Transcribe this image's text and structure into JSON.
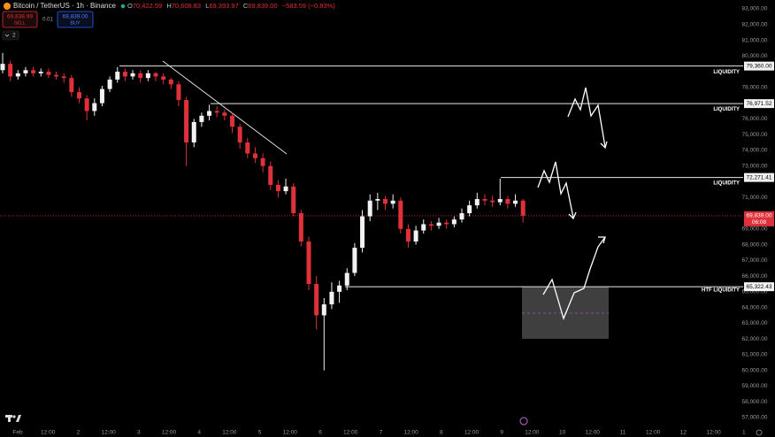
{
  "header": {
    "symbol": "Bitcoin / TetherUS · 1h · Binance",
    "o_key": "O",
    "o": "70,422.59",
    "h_key": "H",
    "h": "70,608.83",
    "l_key": "L",
    "l": "69,393.97",
    "c_key": "C",
    "c": "69,839.00",
    "change": "−583.59 (−0.83%)",
    "sell_price": "69,838.99",
    "sell": "SELL",
    "spread": "0.01",
    "buy_price": "69,839.00",
    "buy": "BUY",
    "indicators": "2"
  },
  "chart_data": {
    "type": "candlestick",
    "open": [
      79100,
      79500,
      78700,
      78900,
      79100,
      78900,
      79000,
      78800,
      78700,
      78600,
      77700,
      77300,
      76500,
      77000,
      77900,
      78500,
      79000,
      78700,
      78900,
      78600,
      78900,
      78700,
      78500,
      78200,
      77200,
      74500,
      75800,
      76200,
      76500,
      76400,
      76200,
      75500,
      74500,
      73800,
      73500,
      73000,
      71800,
      71400,
      71700,
      70000,
      68200,
      65500,
      63500,
      64200,
      65000,
      65400,
      66200,
      67800,
      69800,
      70800,
      70900,
      70600,
      70800,
      69000,
      68200,
      68900,
      69300,
      69200,
      69400,
      69300,
      69600,
      70000,
      70500,
      70900,
      70800,
      70700,
      70900,
      70600,
      70800
    ],
    "high": [
      80200,
      79700,
      79100,
      79300,
      79300,
      79200,
      79200,
      79000,
      78900,
      78800,
      78000,
      77500,
      77300,
      78100,
      78700,
      79300,
      79200,
      79100,
      79100,
      79100,
      79000,
      78900,
      78600,
      78400,
      77400,
      76000,
      76400,
      76900,
      76800,
      76600,
      76400,
      75700,
      74800,
      74200,
      73800,
      73300,
      72100,
      72200,
      71900,
      70200,
      68500,
      66000,
      64600,
      65600,
      65700,
      66500,
      68100,
      70200,
      71200,
      71300,
      71100,
      71200,
      71000,
      69300,
      69200,
      69600,
      69500,
      69700,
      69600,
      69800,
      70300,
      70800,
      71300,
      71200,
      71100,
      72200,
      71100,
      71200,
      70900
    ],
    "low": [
      78900,
      78400,
      78500,
      78700,
      78700,
      78700,
      78600,
      78500,
      78300,
      77400,
      77000,
      75900,
      76200,
      76800,
      77700,
      78300,
      78400,
      78500,
      78300,
      78400,
      78400,
      78200,
      77900,
      76800,
      73000,
      74200,
      75500,
      75900,
      76100,
      75900,
      75100,
      74100,
      73500,
      73200,
      72600,
      71500,
      71000,
      71200,
      69800,
      67900,
      65100,
      62600,
      60000,
      63900,
      64300,
      65100,
      66000,
      67500,
      69500,
      70200,
      70200,
      70300,
      68700,
      67800,
      68000,
      68700,
      68900,
      69000,
      69000,
      69100,
      69400,
      69800,
      70300,
      70500,
      70400,
      70500,
      70300,
      70400,
      69400
    ],
    "close": [
      79500,
      78700,
      78900,
      79100,
      78900,
      79000,
      78800,
      78700,
      78600,
      77700,
      77300,
      76500,
      77000,
      77900,
      78500,
      79000,
      78700,
      78900,
      78600,
      78900,
      78700,
      78500,
      78200,
      77200,
      74500,
      75800,
      76200,
      76500,
      76400,
      76200,
      75500,
      74500,
      73800,
      73500,
      73000,
      71800,
      71400,
      71700,
      70000,
      68200,
      65500,
      63500,
      64200,
      65000,
      65400,
      66200,
      67800,
      69800,
      70800,
      70900,
      70600,
      70800,
      69000,
      68200,
      68900,
      69300,
      69200,
      69400,
      69300,
      69600,
      70000,
      70500,
      70900,
      70800,
      70700,
      70900,
      70600,
      70800,
      69839
    ],
    "up_color": "#f2f2f2",
    "down_color": "#e0303a",
    "ylim": [
      57000,
      83000
    ],
    "yticks": [
      {
        "value": 83000,
        "label": "83,000.00"
      },
      {
        "value": 82000,
        "label": "82,000.00"
      },
      {
        "value": 81000,
        "label": "81,000.00"
      },
      {
        "value": 80000,
        "label": "80,000.00"
      },
      {
        "value": 78000,
        "label": "78,000.00"
      },
      {
        "value": 76000,
        "label": "76,000.00"
      },
      {
        "value": 75000,
        "label": "75,000.00"
      },
      {
        "value": 74000,
        "label": "74,000.00"
      },
      {
        "value": 73000,
        "label": "73,000.00"
      },
      {
        "value": 71000,
        "label": "71,000.00"
      },
      {
        "value": 69000,
        "label": "69,000.00"
      },
      {
        "value": 68000,
        "label": "68,000.00"
      },
      {
        "value": 67000,
        "label": "67,000.00"
      },
      {
        "value": 66000,
        "label": "66,000.00"
      },
      {
        "value": 65000,
        "label": "65,000.00"
      },
      {
        "value": 64000,
        "label": "64,000.00"
      },
      {
        "value": 63000,
        "label": "63,000.00"
      },
      {
        "value": 62000,
        "label": "62,000.00"
      },
      {
        "value": 61000,
        "label": "61,000.00"
      },
      {
        "value": 60000,
        "label": "60,000.00"
      },
      {
        "value": 59000,
        "label": "59,000.00"
      },
      {
        "value": 58000,
        "label": "58,000.00"
      },
      {
        "value": 57000,
        "label": "57,000.00"
      }
    ],
    "x_labels": [
      "Feb",
      "12:00",
      "2",
      "12:00",
      "3",
      "12:00",
      "4",
      "12:00",
      "5",
      "12:00",
      "6",
      "12:00",
      "7",
      "12:00",
      "8",
      "12:00",
      "9",
      "12:00",
      "10",
      "12:00",
      "11",
      "12:00",
      "12",
      "12:00",
      "1"
    ],
    "levels": [
      {
        "value": 79360,
        "price_label": "79,360.00",
        "text": "LIQUIDITY"
      },
      {
        "value": 76971.52,
        "price_label": "76,971.52",
        "text": "LIQUIDITY"
      },
      {
        "value": 72271.41,
        "price_label": "72,271.41",
        "text": "LIQUIDITY"
      },
      {
        "value": 65322.43,
        "price_label": "65,322.43",
        "text": "HTF LIQUIDITY"
      }
    ],
    "last_price": {
      "value": 69839,
      "label": "69,839.00",
      "countdown": "06:08"
    }
  }
}
